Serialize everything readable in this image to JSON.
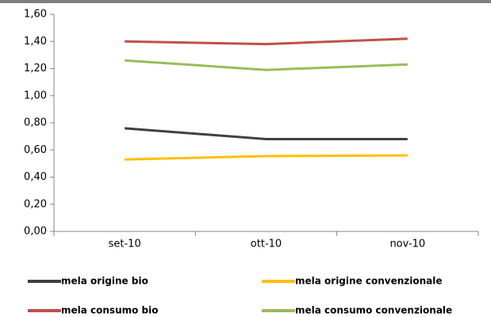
{
  "chart_data": {
    "type": "line",
    "categories": [
      "set-10",
      "ott-10",
      "nov-10"
    ],
    "series": [
      {
        "name": "mela origine bio",
        "color": "#404040",
        "values": [
          0.76,
          0.68,
          0.68
        ]
      },
      {
        "name": "mela origine convenzionale",
        "color": "#ffc000",
        "values": [
          0.53,
          0.555,
          0.56
        ]
      },
      {
        "name": "mela consumo bio",
        "color": "#c0504d",
        "values": [
          1.4,
          1.38,
          1.42
        ]
      },
      {
        "name": "mela consumo convenzionale",
        "color": "#9bbb59",
        "values": [
          1.26,
          1.19,
          1.23
        ]
      }
    ],
    "ylim": [
      0,
      1.6
    ],
    "yticks": [
      {
        "value": 0,
        "label": "0,00"
      },
      {
        "value": 0.2,
        "label": "0,20"
      },
      {
        "value": 0.4,
        "label": "0,40"
      },
      {
        "value": 0.6,
        "label": "0,60"
      },
      {
        "value": 0.8,
        "label": "0,80"
      },
      {
        "value": 1.0,
        "label": "1,00"
      },
      {
        "value": 1.2,
        "label": "1,20"
      },
      {
        "value": 1.4,
        "label": "1,40"
      },
      {
        "value": 1.6,
        "label": "1,60"
      }
    ]
  }
}
